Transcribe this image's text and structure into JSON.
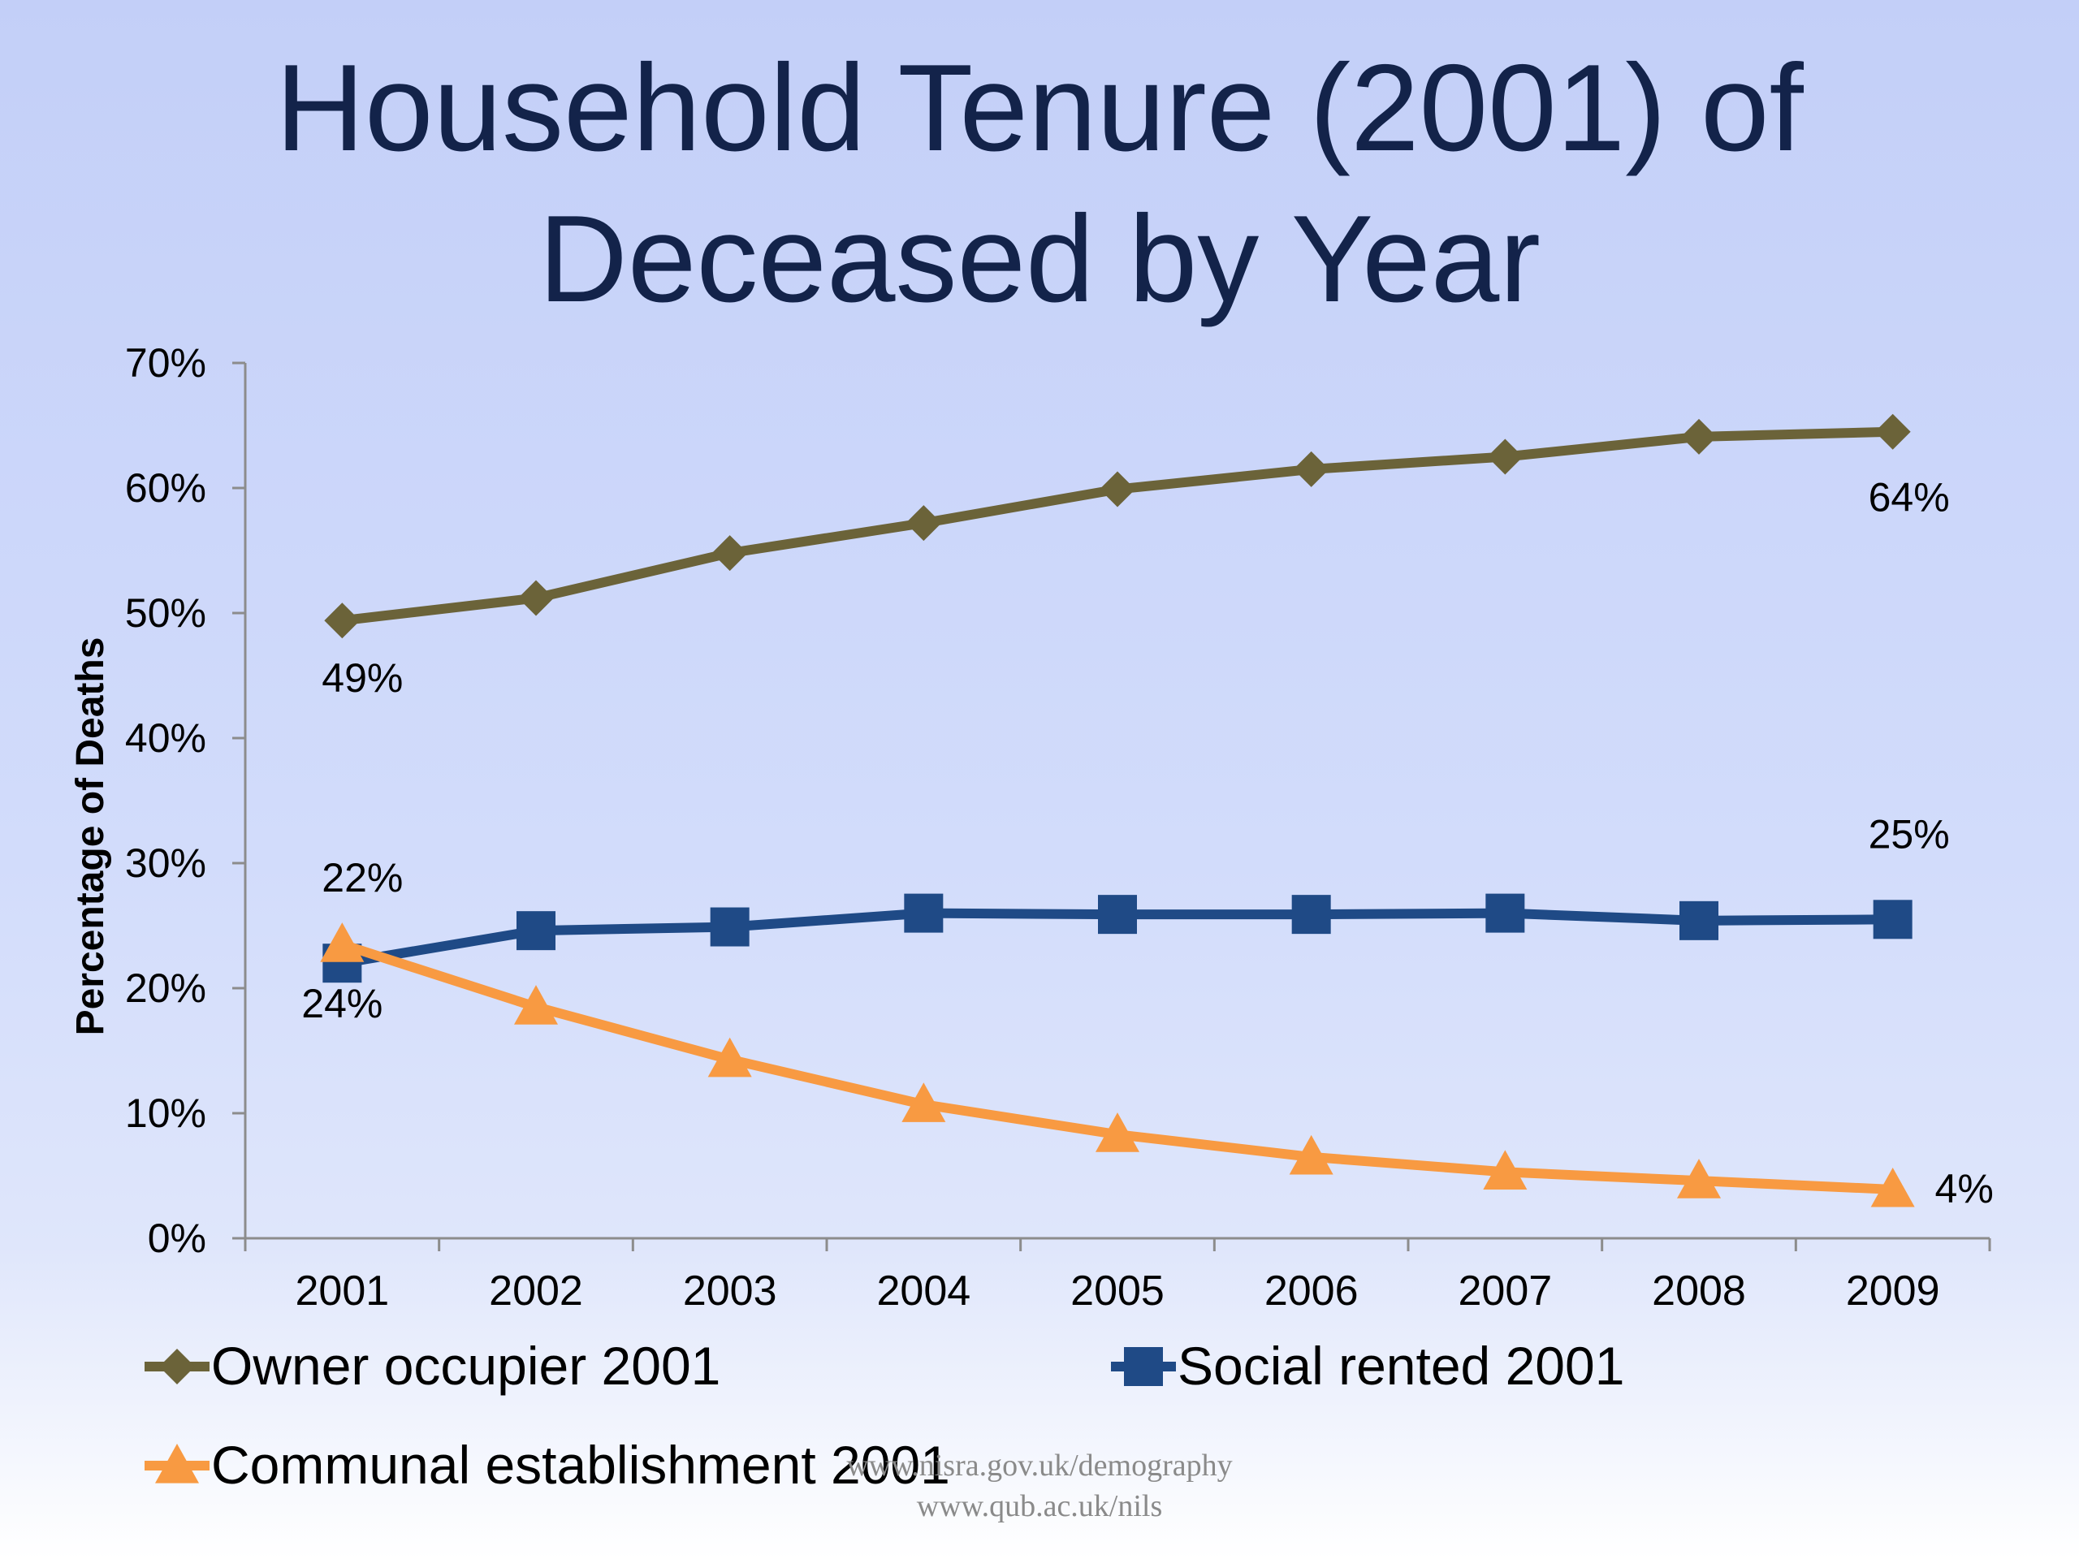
{
  "chart_data": {
    "type": "line",
    "title_line1": "Household Tenure (2001) of",
    "title_line2": "Deceased by Year",
    "ylabel": "Percentage of Deaths",
    "ylim": [
      0,
      70
    ],
    "yticks": [
      "0%",
      "10%",
      "20%",
      "30%",
      "40%",
      "50%",
      "60%",
      "70%"
    ],
    "categories": [
      "2001",
      "2002",
      "2003",
      "2004",
      "2005",
      "2006",
      "2007",
      "2008",
      "2009"
    ],
    "series": [
      {
        "name": "Owner occupier 2001",
        "color": "#6b6339",
        "marker": "diamond",
        "values": [
          49.4,
          51.2,
          54.8,
          57.2,
          59.9,
          61.5,
          62.5,
          64.1,
          64.5
        ]
      },
      {
        "name": "Social rented 2001",
        "color": "#1f4a86",
        "marker": "square",
        "values": [
          22.0,
          24.6,
          24.9,
          26.0,
          25.9,
          25.9,
          26.0,
          25.4,
          25.5
        ]
      },
      {
        "name": "Communal establishment 2001",
        "color": "#f89a42",
        "marker": "triangle",
        "values": [
          23.5,
          18.5,
          14.3,
          10.7,
          8.3,
          6.5,
          5.3,
          4.6,
          3.9
        ]
      }
    ],
    "data_labels": [
      {
        "series": 0,
        "index": 0,
        "text": "49%"
      },
      {
        "series": 0,
        "index": 8,
        "text": "64%"
      },
      {
        "series": 1,
        "index": 0,
        "text": "22%"
      },
      {
        "series": 1,
        "index": 8,
        "text": "25%"
      },
      {
        "series": 2,
        "index": 0,
        "text": "24%"
      },
      {
        "series": 2,
        "index": 8,
        "text": "4%"
      }
    ],
    "legend_position": "bottom"
  },
  "footer": {
    "line1": "www.nisra.gov.uk/demography",
    "line2": "www.qub.ac.uk/nils"
  }
}
